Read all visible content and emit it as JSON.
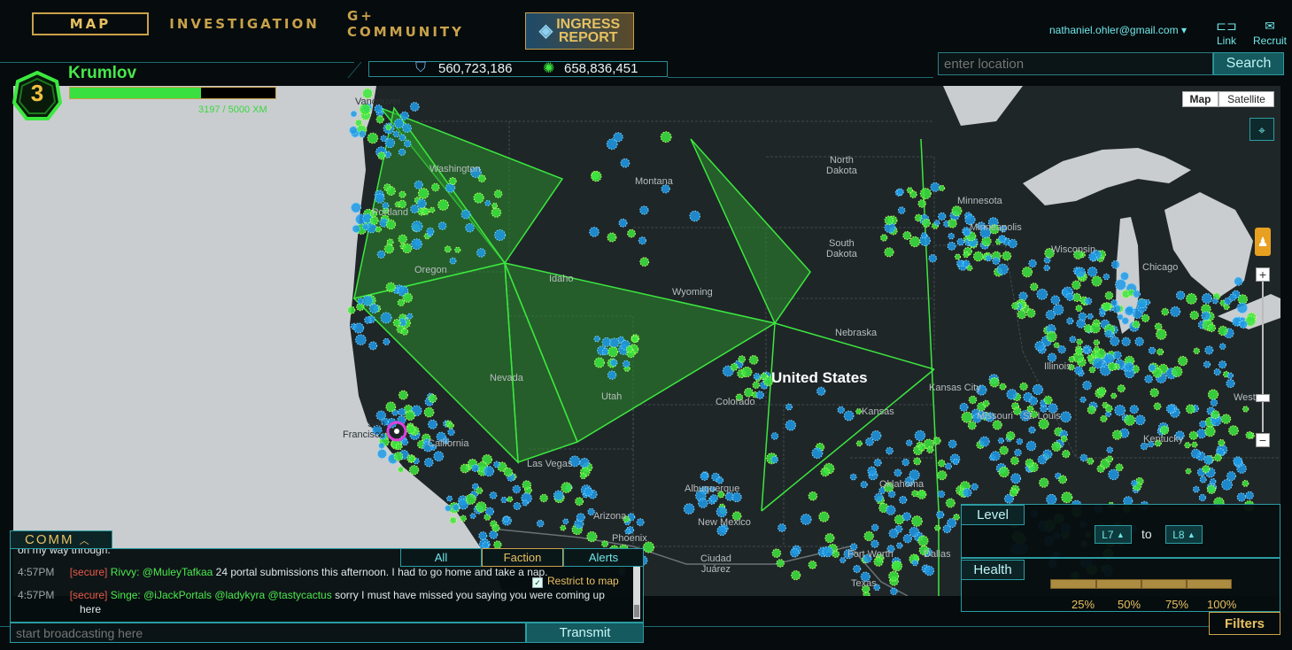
{
  "nav": {
    "tabs": [
      {
        "label": "MAP"
      },
      {
        "label": "INVESTIGATION"
      },
      {
        "label": "G+ COMMUNITY"
      }
    ],
    "banner": {
      "line1": "INGRESS",
      "line2": "REPORT"
    }
  },
  "account": {
    "email": "nathaniel.ohler@gmail.com",
    "link_label": "Link",
    "recruit_label": "Recruit"
  },
  "scores": {
    "resistance": "560,723,186",
    "enlightened": "658,836,451"
  },
  "search": {
    "placeholder": "enter location",
    "button": "Search"
  },
  "agent": {
    "name": "Krumlov",
    "level": "3",
    "xp_text": "3197 / 5000 XM",
    "xp_fraction": 0.64
  },
  "map": {
    "type_buttons": {
      "map": "Map",
      "satellite": "Satellite"
    },
    "country_label": "United States",
    "labels": {
      "vancouver": "Vancouver",
      "washington": "Washington",
      "portland": "Portland",
      "oregon": "Oregon",
      "idaho": "Idaho",
      "montana": "Montana",
      "wyoming": "Wyoming",
      "north_dakota": "North\nDakota",
      "south_dakota": "South\nDakota",
      "nebraska": "Nebraska",
      "nevada": "Nevada",
      "utah": "Utah",
      "colorado": "Colorado",
      "kansas": "Kansas",
      "kansas_city": "Kansas City",
      "missouri": "Missouri",
      "st_louis": "St. Louis",
      "illinois": "Illinois",
      "minnesota": "Minnesota",
      "wisconsin": "Wisconsin",
      "chicago": "Chicago",
      "kentucky": "Kentucky",
      "west": "West",
      "oklahoma": "Oklahoma",
      "las_vegas": "Las Vegas",
      "arizona": "Arizona",
      "phoenix": "Phoenix",
      "new_mexico": "New Mexico",
      "albuquerque": "Albuquerque",
      "ciudad_juarez": "Ciudad\nJuárez",
      "fort_worth": "Fort Worth",
      "dallas": "Dallas",
      "texas": "Texas",
      "san_francisco": "San\nFrancisco",
      "california": "California",
      "minneapolis": "Minneapolis"
    },
    "colors": {
      "enlightened": "#3ce83f",
      "resistance": "#1f9ae8",
      "field": "#2a8c2c",
      "water": "#c9cdd0",
      "land": "#252b2d"
    }
  },
  "comm": {
    "title": "COMM",
    "tabs": [
      "All",
      "Faction",
      "Alerts"
    ],
    "active_tab": "Faction",
    "restrict_label": "Restrict to map",
    "partial_line": "on my way through.",
    "messages": [
      {
        "time": "4:57PM",
        "channel": "[secure]",
        "agent": "Rivvy:",
        "mentions": "@MuleyTafkaa",
        "text": "24 portal submissions this afternoon. I had to go home and take a nap."
      },
      {
        "time": "4:57PM",
        "channel": "[secure]",
        "agent": "Singe:",
        "mentions": "@iJackPortals @ladykyra @tastycactus",
        "text": "sorry I must have missed you saying you were coming up here"
      }
    ],
    "input_placeholder": "start broadcasting here",
    "transmit": "Transmit"
  },
  "filters": {
    "level_label": "Level",
    "level_from": "L7",
    "level_to_word": "to",
    "level_to": "L8",
    "health_label": "Health",
    "health_ticks": [
      "25%",
      "50%",
      "75%",
      "100%"
    ],
    "button": "Filters"
  }
}
